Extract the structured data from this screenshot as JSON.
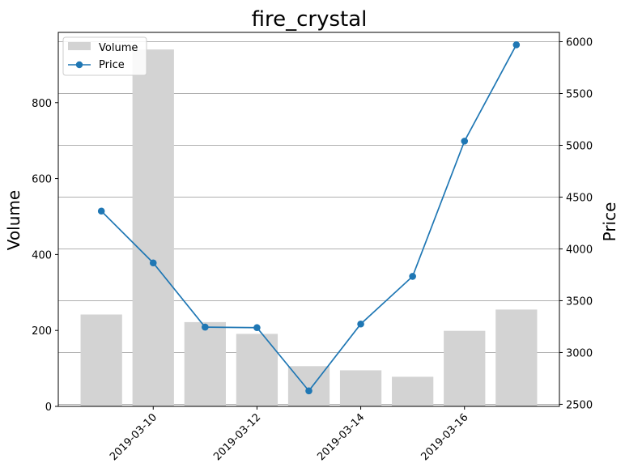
{
  "chart_data": {
    "type": "bar+line",
    "title": "fire_crystal",
    "dates": [
      "2019-03-09",
      "2019-03-10",
      "2019-03-11",
      "2019-03-12",
      "2019-03-13",
      "2019-03-14",
      "2019-03-15",
      "2019-03-16",
      "2019-03-17"
    ],
    "x_tick_labels": [
      "2019-03-10",
      "2019-03-12",
      "2019-03-14",
      "2019-03-16"
    ],
    "series": [
      {
        "name": "Volume",
        "kind": "bar",
        "axis": "left",
        "color": "#d3d3d3",
        "values": [
          242,
          940,
          222,
          191,
          106,
          95,
          78,
          199,
          255
        ]
      },
      {
        "name": "Price",
        "kind": "line",
        "axis": "right",
        "color": "#1f77b4",
        "values": [
          4365,
          3865,
          3245,
          3240,
          2630,
          3275,
          3735,
          5040,
          5970
        ]
      }
    ],
    "ylabel_left": "Volume",
    "ylabel_right": "Price",
    "ylim_left": [
      0,
      985
    ],
    "yticks_left": [
      0,
      200,
      400,
      600,
      800
    ],
    "ylim_right": [
      2480,
      6090
    ],
    "yticks_right": [
      2500,
      3000,
      3500,
      4000,
      4500,
      5000,
      5500,
      6000
    ],
    "grid": "horizontal, aligned to right axis ticks",
    "legend_position": "top-left"
  }
}
